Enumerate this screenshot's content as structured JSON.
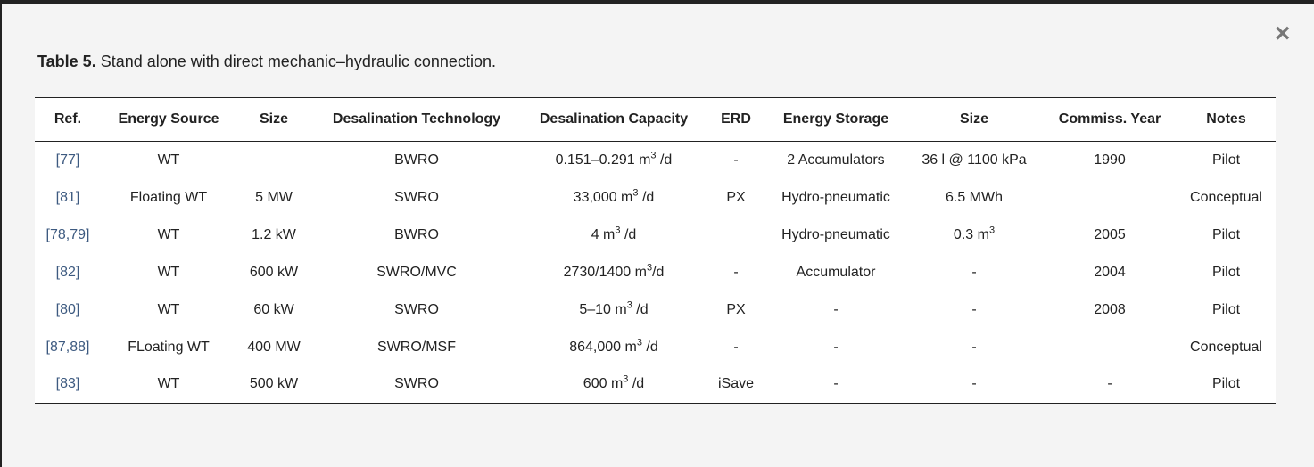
{
  "caption": {
    "label": "Table 5.",
    "text": " Stand alone with direct mechanic–hydraulic connection."
  },
  "close_icon": "×",
  "headers": [
    "Ref.",
    "Energy Source",
    "Size",
    "Desalination Technology",
    "Desalination Capacity",
    "ERD",
    "Energy Storage",
    "Size",
    "Commiss. Year",
    "Notes"
  ],
  "rows": [
    {
      "ref": "[77]",
      "source": "WT",
      "size": "",
      "tech": "BWRO",
      "cap": {
        "pre": "0.151–0.291 m",
        "sup": "3",
        "post": " /d"
      },
      "erd": "-",
      "storage": "2 Accumulators",
      "ssize": {
        "pre": "36 l @ 1100 kPa",
        "sup": ""
      },
      "year": "1990",
      "notes": "Pilot"
    },
    {
      "ref": "[81]",
      "source": "Floating WT",
      "size": "5 MW",
      "tech": "SWRO",
      "cap": {
        "pre": "33,000 m",
        "sup": "3",
        "post": " /d"
      },
      "erd": "PX",
      "storage": "Hydro-pneumatic",
      "ssize": {
        "pre": "6.5 MWh",
        "sup": ""
      },
      "year": "",
      "notes": "Conceptual"
    },
    {
      "ref": "[78,79]",
      "source": "WT",
      "size": "1.2 kW",
      "tech": "BWRO",
      "cap": {
        "pre": "4 m",
        "sup": "3",
        "post": " /d"
      },
      "erd": "",
      "storage": "Hydro-pneumatic",
      "ssize": {
        "pre": "0.3 m",
        "sup": "3"
      },
      "year": "2005",
      "notes": "Pilot"
    },
    {
      "ref": "[82]",
      "source": "WT",
      "size": "600 kW",
      "tech": "SWRO/MVC",
      "cap": {
        "pre": "2730/1400 m",
        "sup": "3",
        "post": "/d"
      },
      "erd": "-",
      "storage": "Accumulator",
      "ssize": {
        "pre": "-",
        "sup": ""
      },
      "year": "2004",
      "notes": "Pilot"
    },
    {
      "ref": "[80]",
      "source": "WT",
      "size": "60 kW",
      "tech": "SWRO",
      "cap": {
        "pre": "5–10 m",
        "sup": "3",
        "post": " /d"
      },
      "erd": "PX",
      "storage": "-",
      "ssize": {
        "pre": "-",
        "sup": ""
      },
      "year": "2008",
      "notes": "Pilot"
    },
    {
      "ref": "[87,88]",
      "source": "FLoating WT",
      "size": "400 MW",
      "tech": "SWRO/MSF",
      "cap": {
        "pre": "864,000 m",
        "sup": "3",
        "post": " /d"
      },
      "erd": "-",
      "storage": "-",
      "ssize": {
        "pre": "-",
        "sup": ""
      },
      "year": "",
      "notes": "Conceptual"
    },
    {
      "ref": "[83]",
      "source": "WT",
      "size": "500 kW",
      "tech": "SWRO",
      "cap": {
        "pre": "600 m",
        "sup": "3",
        "post": " /d"
      },
      "erd": "iSave",
      "storage": "-",
      "ssize": {
        "pre": "-",
        "sup": ""
      },
      "year": "-",
      "notes": "Pilot"
    }
  ]
}
